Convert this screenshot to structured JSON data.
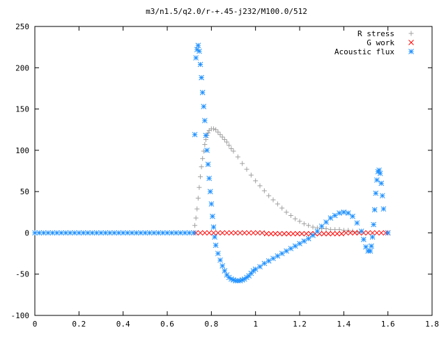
{
  "chart_data": {
    "type": "scatter",
    "title": "m3/n1.5/q2.0/r-+.45-j232/M100.0/512",
    "xlabel": "",
    "ylabel": "",
    "xlim": [
      0,
      1.8
    ],
    "ylim": [
      -100,
      250
    ],
    "x_ticks": [
      0,
      0.2,
      0.4,
      0.6,
      0.8,
      1,
      1.2,
      1.4,
      1.6,
      1.8
    ],
    "x_tick_labels": [
      "0",
      "0.2",
      "0.4",
      "0.6",
      "0.8",
      "1",
      "1.2",
      "1.4",
      "1.6",
      "1.8"
    ],
    "y_ticks": [
      -100,
      -50,
      0,
      50,
      100,
      150,
      200,
      250
    ],
    "y_tick_labels": [
      "-100",
      "-50",
      "0",
      "50",
      "100",
      "150",
      "200",
      "250"
    ],
    "grid": false,
    "legend_position": "top-right",
    "series": [
      {
        "name": "R stress",
        "marker": "plus",
        "color": "#a0a0a0",
        "points": [
          [
            0.725,
            9
          ],
          [
            0.73,
            18
          ],
          [
            0.735,
            29
          ],
          [
            0.74,
            42
          ],
          [
            0.745,
            55
          ],
          [
            0.75,
            68
          ],
          [
            0.755,
            80
          ],
          [
            0.76,
            90
          ],
          [
            0.765,
            99
          ],
          [
            0.77,
            107
          ],
          [
            0.775,
            113
          ],
          [
            0.78,
            118
          ],
          [
            0.785,
            121
          ],
          [
            0.79,
            124
          ],
          [
            0.8,
            126
          ],
          [
            0.81,
            126
          ],
          [
            0.82,
            125
          ],
          [
            0.83,
            122
          ],
          [
            0.84,
            119
          ],
          [
            0.85,
            116
          ],
          [
            0.86,
            113
          ],
          [
            0.87,
            110
          ],
          [
            0.88,
            106
          ],
          [
            0.89,
            102
          ],
          [
            0.9,
            99
          ],
          [
            0.92,
            92
          ],
          [
            0.94,
            84
          ],
          [
            0.96,
            77
          ],
          [
            0.98,
            70
          ],
          [
            1.0,
            63
          ],
          [
            1.02,
            57
          ],
          [
            1.04,
            51
          ],
          [
            1.06,
            45
          ],
          [
            1.08,
            40
          ],
          [
            1.1,
            35
          ],
          [
            1.12,
            30
          ],
          [
            1.14,
            25
          ],
          [
            1.16,
            21
          ],
          [
            1.18,
            17
          ],
          [
            1.2,
            14
          ],
          [
            1.22,
            11
          ],
          [
            1.24,
            9
          ],
          [
            1.26,
            7
          ],
          [
            1.28,
            6
          ],
          [
            1.3,
            5
          ],
          [
            1.32,
            5
          ],
          [
            1.34,
            4
          ],
          [
            1.36,
            4
          ],
          [
            1.38,
            4
          ],
          [
            1.4,
            3
          ],
          [
            1.42,
            3
          ],
          [
            1.44,
            2
          ],
          [
            1.46,
            1
          ]
        ]
      },
      {
        "name": "G work",
        "marker": "cross",
        "color": "#ff0000",
        "points": [
          [
            0.73,
            0
          ],
          [
            0.75,
            0
          ],
          [
            0.77,
            0
          ],
          [
            0.79,
            0
          ],
          [
            0.81,
            0
          ],
          [
            0.83,
            0
          ],
          [
            0.85,
            0
          ],
          [
            0.87,
            0
          ],
          [
            0.89,
            0
          ],
          [
            0.91,
            0
          ],
          [
            0.93,
            0
          ],
          [
            0.95,
            0
          ],
          [
            0.97,
            0
          ],
          [
            0.99,
            0
          ],
          [
            1.01,
            0
          ],
          [
            1.03,
            0
          ],
          [
            1.05,
            -1
          ],
          [
            1.07,
            -1
          ],
          [
            1.09,
            -1
          ],
          [
            1.11,
            -1
          ],
          [
            1.13,
            -1
          ],
          [
            1.15,
            -1
          ],
          [
            1.17,
            -1
          ],
          [
            1.19,
            -1
          ],
          [
            1.21,
            -1
          ],
          [
            1.23,
            -1
          ],
          [
            1.25,
            -1
          ],
          [
            1.27,
            -1
          ],
          [
            1.29,
            -1
          ],
          [
            1.31,
            -1
          ],
          [
            1.33,
            -1
          ],
          [
            1.35,
            -1
          ],
          [
            1.37,
            -1
          ],
          [
            1.39,
            -1
          ],
          [
            1.41,
            0
          ],
          [
            1.43,
            0
          ],
          [
            1.45,
            0
          ],
          [
            1.47,
            0
          ],
          [
            1.49,
            0
          ],
          [
            1.51,
            0
          ],
          [
            1.53,
            0
          ],
          [
            1.55,
            0
          ],
          [
            1.57,
            0
          ],
          [
            1.59,
            0
          ],
          [
            1.6,
            0
          ]
        ]
      },
      {
        "name": "Acoustic flux",
        "marker": "star",
        "color": "#1e90ff",
        "points": [
          [
            0.0,
            0
          ],
          [
            0.02,
            0
          ],
          [
            0.04,
            0
          ],
          [
            0.06,
            0
          ],
          [
            0.08,
            0
          ],
          [
            0.1,
            0
          ],
          [
            0.12,
            0
          ],
          [
            0.14,
            0
          ],
          [
            0.16,
            0
          ],
          [
            0.18,
            0
          ],
          [
            0.2,
            0
          ],
          [
            0.22,
            0
          ],
          [
            0.24,
            0
          ],
          [
            0.26,
            0
          ],
          [
            0.28,
            0
          ],
          [
            0.3,
            0
          ],
          [
            0.32,
            0
          ],
          [
            0.34,
            0
          ],
          [
            0.36,
            0
          ],
          [
            0.38,
            0
          ],
          [
            0.4,
            0
          ],
          [
            0.42,
            0
          ],
          [
            0.44,
            0
          ],
          [
            0.46,
            0
          ],
          [
            0.48,
            0
          ],
          [
            0.5,
            0
          ],
          [
            0.52,
            0
          ],
          [
            0.54,
            0
          ],
          [
            0.56,
            0
          ],
          [
            0.58,
            0
          ],
          [
            0.6,
            0
          ],
          [
            0.62,
            0
          ],
          [
            0.64,
            0
          ],
          [
            0.66,
            0
          ],
          [
            0.68,
            0
          ],
          [
            0.7,
            0
          ],
          [
            0.72,
            0
          ],
          [
            0.725,
            119
          ],
          [
            0.73,
            212
          ],
          [
            0.735,
            222
          ],
          [
            0.74,
            227
          ],
          [
            0.745,
            220
          ],
          [
            0.75,
            204
          ],
          [
            0.755,
            188
          ],
          [
            0.76,
            170
          ],
          [
            0.765,
            153
          ],
          [
            0.77,
            136
          ],
          [
            0.775,
            118
          ],
          [
            0.78,
            100
          ],
          [
            0.785,
            83
          ],
          [
            0.79,
            66
          ],
          [
            0.795,
            50
          ],
          [
            0.8,
            35
          ],
          [
            0.805,
            20
          ],
          [
            0.81,
            7
          ],
          [
            0.815,
            -5
          ],
          [
            0.82,
            -15
          ],
          [
            0.83,
            -25
          ],
          [
            0.84,
            -33
          ],
          [
            0.85,
            -40
          ],
          [
            0.86,
            -46
          ],
          [
            0.87,
            -51
          ],
          [
            0.88,
            -54
          ],
          [
            0.89,
            -56
          ],
          [
            0.9,
            -57
          ],
          [
            0.91,
            -58
          ],
          [
            0.92,
            -58
          ],
          [
            0.93,
            -58
          ],
          [
            0.94,
            -57
          ],
          [
            0.95,
            -56
          ],
          [
            0.96,
            -54
          ],
          [
            0.97,
            -52
          ],
          [
            0.98,
            -49
          ],
          [
            0.99,
            -46
          ],
          [
            1.0,
            -44
          ],
          [
            1.02,
            -41
          ],
          [
            1.04,
            -37
          ],
          [
            1.06,
            -34
          ],
          [
            1.08,
            -31
          ],
          [
            1.1,
            -28
          ],
          [
            1.12,
            -25
          ],
          [
            1.14,
            -22
          ],
          [
            1.16,
            -19
          ],
          [
            1.18,
            -16
          ],
          [
            1.2,
            -13
          ],
          [
            1.22,
            -10
          ],
          [
            1.24,
            -7
          ],
          [
            1.26,
            -3
          ],
          [
            1.28,
            2
          ],
          [
            1.3,
            8
          ],
          [
            1.32,
            13
          ],
          [
            1.34,
            18
          ],
          [
            1.36,
            21
          ],
          [
            1.38,
            24
          ],
          [
            1.4,
            25
          ],
          [
            1.42,
            24
          ],
          [
            1.44,
            20
          ],
          [
            1.46,
            12
          ],
          [
            1.48,
            2
          ],
          [
            1.49,
            -8
          ],
          [
            1.5,
            -17
          ],
          [
            1.51,
            -22
          ],
          [
            1.52,
            -22
          ],
          [
            1.525,
            -16
          ],
          [
            1.53,
            -5
          ],
          [
            1.535,
            10
          ],
          [
            1.54,
            28
          ],
          [
            1.545,
            48
          ],
          [
            1.55,
            64
          ],
          [
            1.555,
            74
          ],
          [
            1.56,
            76
          ],
          [
            1.565,
            72
          ],
          [
            1.57,
            60
          ],
          [
            1.575,
            45
          ],
          [
            1.58,
            29
          ],
          [
            1.6,
            0
          ]
        ]
      }
    ]
  }
}
